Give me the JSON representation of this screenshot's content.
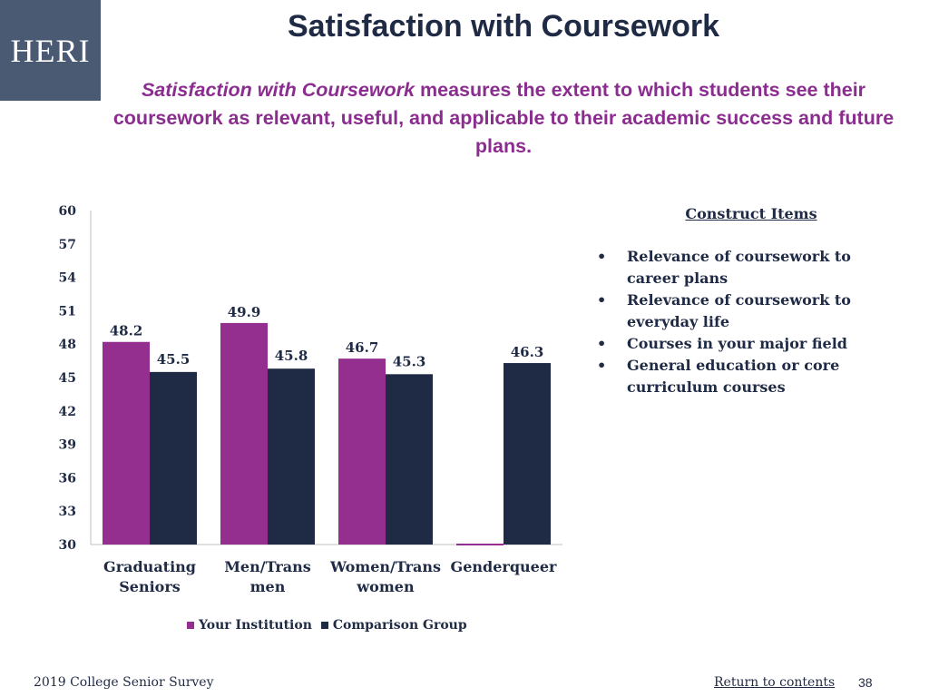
{
  "logo": {
    "text": "HERI"
  },
  "title": "Satisfaction with Coursework",
  "subtitle": {
    "emphasis": "Satisfaction with Coursework",
    "text": " measures the extent to which students see their coursework as relevant, useful, and applicable to their academic success and future plans."
  },
  "colors": {
    "institution": "#952f8f",
    "comparison": "#1f2a44",
    "title": "#1f2a44",
    "subtitle": "#8b2d8f"
  },
  "chart_data": {
    "type": "bar",
    "title": "",
    "xlabel": "",
    "ylabel": "",
    "categories": [
      [
        "Graduating",
        "Seniors"
      ],
      [
        "Men/Trans",
        "men"
      ],
      [
        "Women/Trans",
        "women"
      ],
      [
        "Genderqueer"
      ]
    ],
    "series": [
      {
        "name": "Your Institution",
        "values": [
          48.2,
          49.9,
          46.7,
          null
        ],
        "labels": [
          "48.2",
          "49.9",
          "46.7",
          ""
        ]
      },
      {
        "name": "Comparison Group",
        "values": [
          45.5,
          45.8,
          45.3,
          46.3
        ],
        "labels": [
          "45.5",
          "45.8",
          "45.3",
          "46.3"
        ]
      }
    ],
    "ylim": [
      30,
      60
    ],
    "yticks": [
      30,
      33,
      36,
      39,
      42,
      45,
      48,
      51,
      54,
      57,
      60
    ],
    "grid": false,
    "legend_position": "bottom"
  },
  "legend": {
    "items": [
      "Your Institution",
      "Comparison Group"
    ]
  },
  "construct": {
    "title": "Construct Items",
    "items": [
      "Relevance of coursework to career plans",
      "Relevance of coursework to everyday life",
      "Courses in your major field",
      "General education or core curriculum courses"
    ]
  },
  "footer": {
    "survey": "2019 College Senior Survey",
    "return_link": "Return to contents",
    "page": "38"
  }
}
